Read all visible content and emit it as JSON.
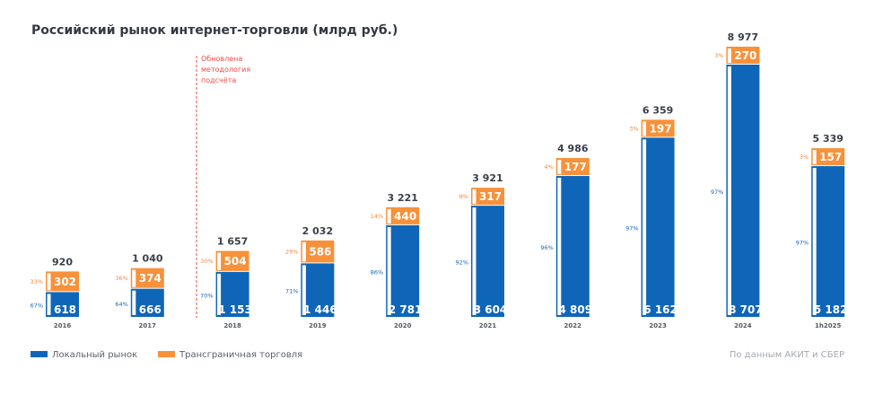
{
  "chart_data": {
    "type": "bar",
    "stacked": true,
    "title": "Российский рынок интернет-торговли (млрд руб.)",
    "annotation": {
      "lines": [
        "Обновлена",
        "методология",
        "подсчёта"
      ],
      "between": [
        "2017",
        "2018"
      ]
    },
    "categories": [
      "2016",
      "2017",
      "2018",
      "2019",
      "2020",
      "2021",
      "2022",
      "2023",
      "2024",
      "1h2025"
    ],
    "series": [
      {
        "name": "Локальный рынок",
        "color": "#0f66b8",
        "values": [
          618,
          666,
          1153,
          1446,
          2781,
          3604,
          4809,
          6162,
          8707,
          5182
        ],
        "labels": [
          "618",
          "666",
          "1 153",
          "1 446",
          "2 781",
          "3 604",
          "4 809",
          "6 162",
          "8 707",
          "5 182"
        ],
        "shares": [
          "67%",
          "64%",
          "70%",
          "71%",
          "86%",
          "92%",
          "96%",
          "97%",
          "97%",
          "97%"
        ]
      },
      {
        "name": "Трансграничная торговля",
        "color": "#f7913a",
        "values": [
          302,
          374,
          504,
          586,
          440,
          317,
          177,
          197,
          270,
          157
        ],
        "labels": [
          "302",
          "374",
          "504",
          "586",
          "440",
          "317",
          "177",
          "197",
          "270",
          "157"
        ],
        "shares": [
          "33%",
          "36%",
          "30%",
          "29%",
          "14%",
          "8%",
          "4%",
          "3%",
          "3%",
          "3%"
        ]
      }
    ],
    "totals": [
      920,
      1040,
      1657,
      2032,
      3221,
      3921,
      4986,
      6359,
      8977,
      5339
    ],
    "total_labels": [
      "920",
      "1 040",
      "1 657",
      "2 032",
      "3 221",
      "3 921",
      "4 986",
      "6 359",
      "8 977",
      "5 339"
    ],
    "xlabel": "",
    "ylabel": "",
    "grid": false,
    "legend": "bottom-left",
    "source": "По данным АКИТ и СБЕР"
  }
}
